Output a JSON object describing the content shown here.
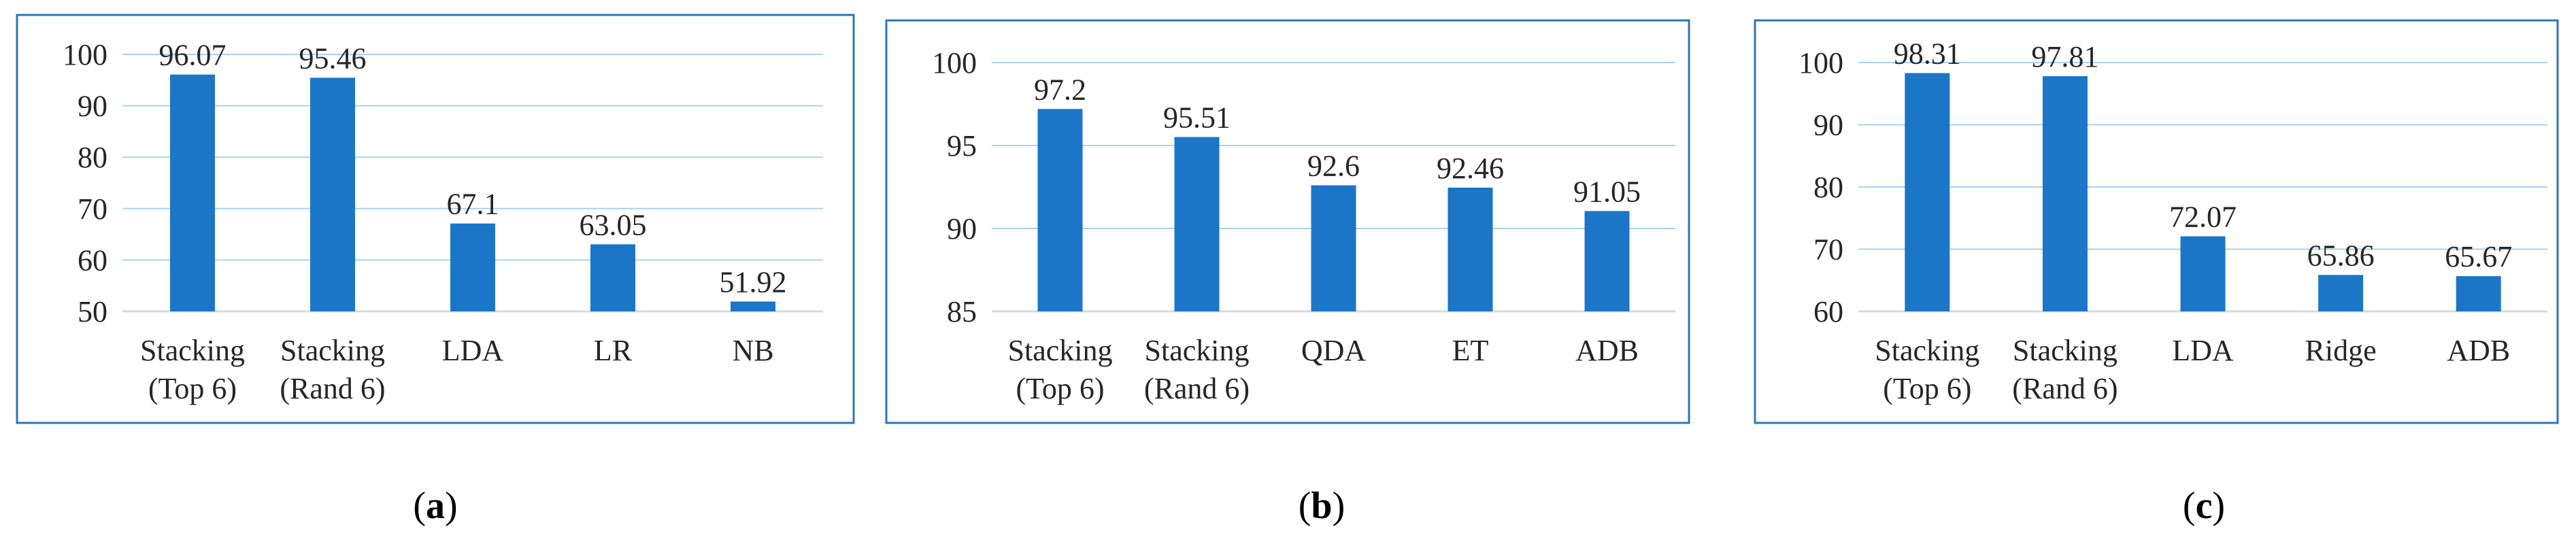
{
  "chart_data": [
    {
      "type": "bar",
      "categories": [
        [
          "Stacking",
          "(Top 6)"
        ],
        [
          "Stacking",
          "(Rand 6)"
        ],
        [
          "LDA"
        ],
        [
          "LR"
        ],
        [
          "NB"
        ]
      ],
      "values": [
        96.07,
        95.46,
        67.1,
        63.05,
        51.92
      ],
      "value_labels": [
        "96.07",
        "95.46",
        "67.1",
        "63.05",
        "51.92"
      ],
      "ylim": [
        50,
        100
      ],
      "yticks": [
        50,
        60,
        70,
        80,
        90,
        100
      ],
      "grid": true,
      "bar_color": "#1b76c8",
      "caption": {
        "open": "(",
        "letter": "a",
        "close": ")"
      }
    },
    {
      "type": "bar",
      "categories": [
        [
          "Stacking",
          "(Top 6)"
        ],
        [
          "Stacking",
          "(Rand 6)"
        ],
        [
          "QDA"
        ],
        [
          "ET"
        ],
        [
          "ADB"
        ]
      ],
      "values": [
        97.2,
        95.51,
        92.6,
        92.46,
        91.05
      ],
      "value_labels": [
        "97.2",
        "95.51",
        "92.6",
        "92.46",
        "91.05"
      ],
      "ylim": [
        85,
        100
      ],
      "yticks": [
        85,
        90,
        95,
        100
      ],
      "grid": true,
      "bar_color": "#1b76c8",
      "caption": {
        "open": "(",
        "letter": "b",
        "close": ")"
      }
    },
    {
      "type": "bar",
      "categories": [
        [
          "Stacking",
          "(Top 6)"
        ],
        [
          "Stacking",
          "(Rand 6)"
        ],
        [
          "LDA"
        ],
        [
          "Ridge"
        ],
        [
          "ADB"
        ]
      ],
      "values": [
        98.31,
        97.81,
        72.07,
        65.86,
        65.67
      ],
      "value_labels": [
        "98.31",
        "97.81",
        "72.07",
        "65.86",
        "65.67"
      ],
      "ylim": [
        60,
        100
      ],
      "yticks": [
        60,
        70,
        80,
        90,
        100
      ],
      "grid": true,
      "bar_color": "#1b76c8",
      "caption": {
        "open": "(",
        "letter": "c",
        "close": ")"
      }
    }
  ]
}
